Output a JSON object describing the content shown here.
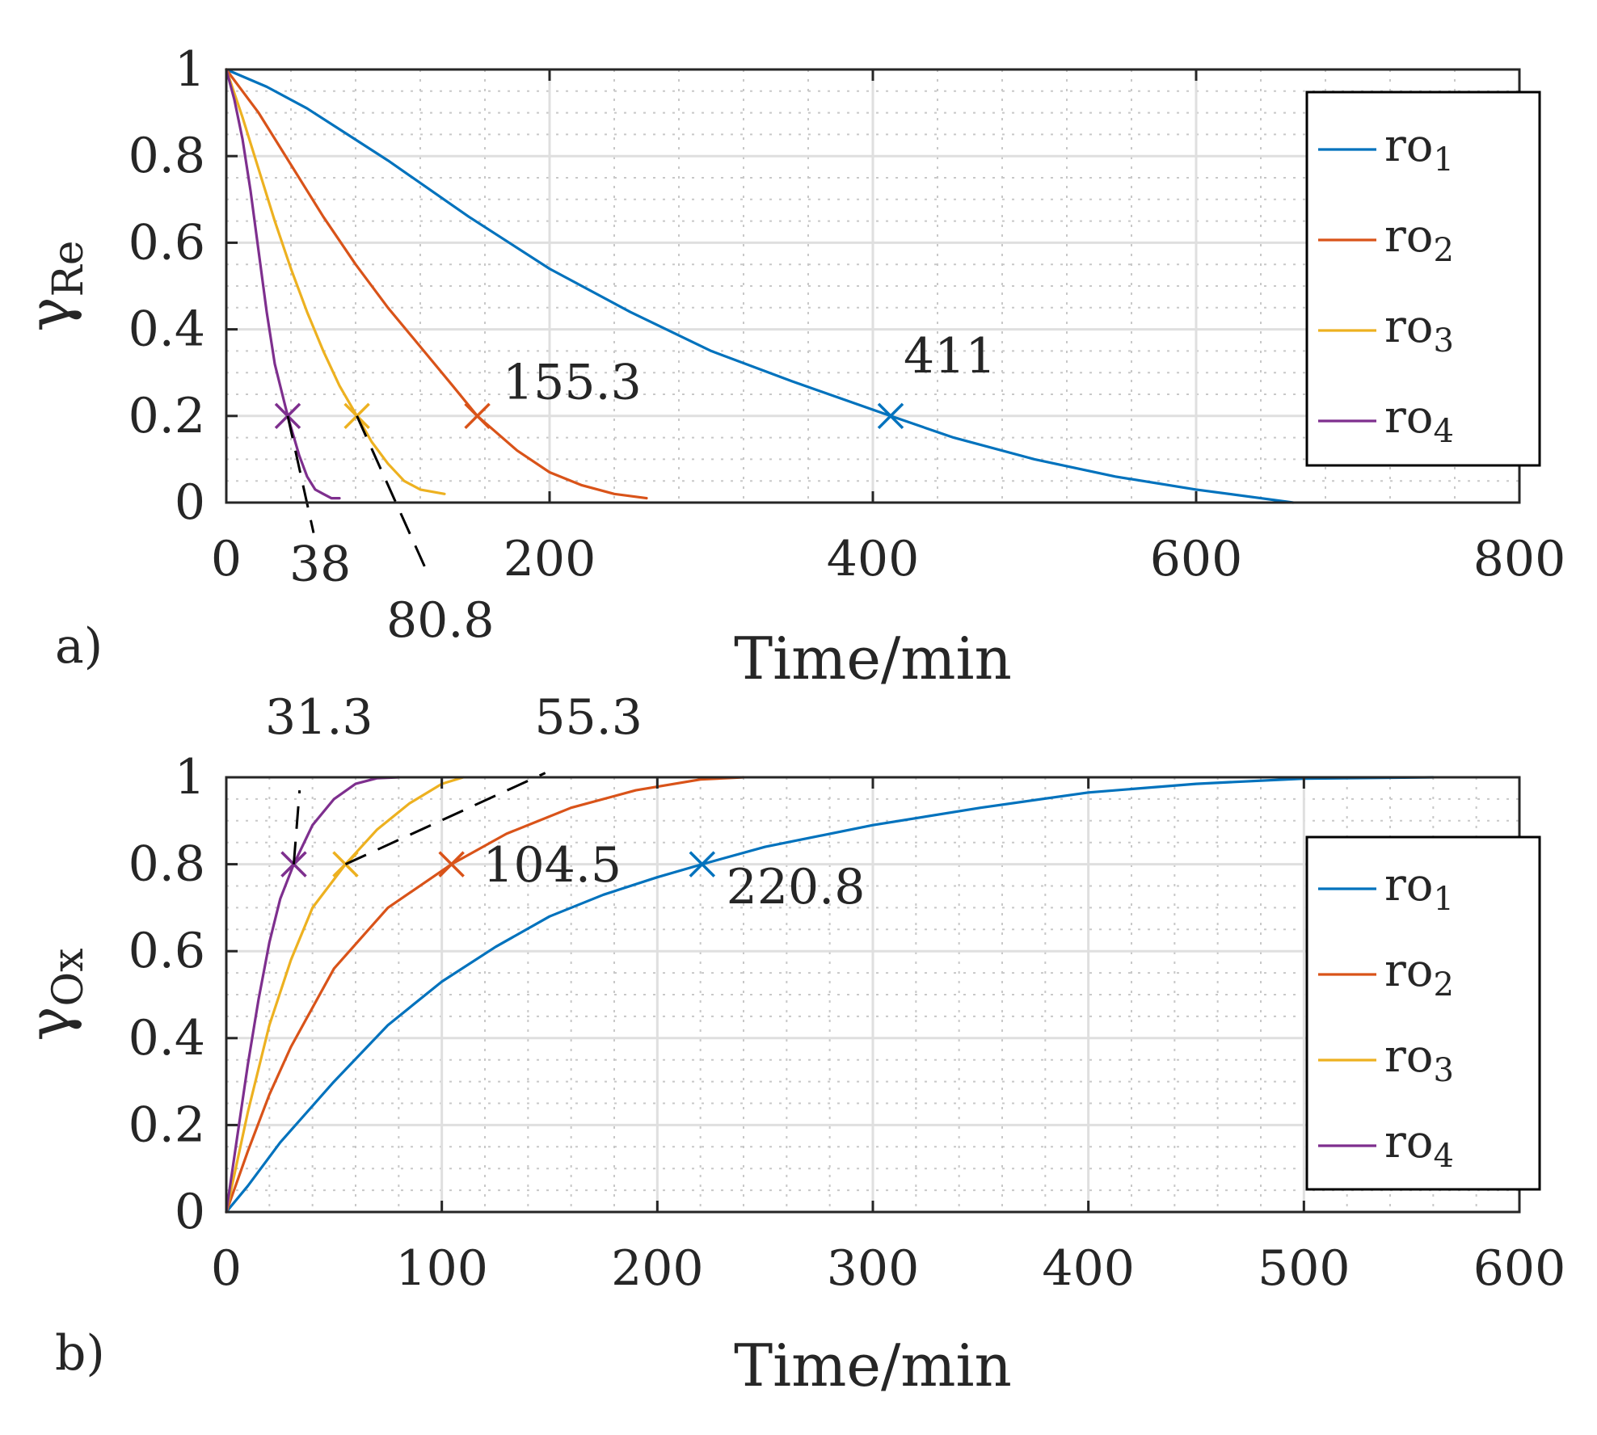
{
  "colors": {
    "ro1": "#0072BD",
    "ro2": "#D95319",
    "ro3": "#EDB120",
    "ro4": "#7E2F8E",
    "axis": "#262626",
    "grid_major": "#DFDFDF",
    "grid_minor": "#C8C8C8"
  },
  "chart_data": [
    {
      "type": "line",
      "panel_label": "a)",
      "xlabel": "Time/min",
      "ylabel_main": "γ",
      "ylabel_sub": "Re",
      "xlim": [
        0,
        800
      ],
      "ylim": [
        0,
        1
      ],
      "xticks": [
        0,
        200,
        400,
        600,
        800
      ],
      "xtick_labels": [
        "0",
        "200",
        "400",
        "600",
        "800"
      ],
      "yticks": [
        0,
        0.2,
        0.4,
        0.6,
        0.8,
        1
      ],
      "ytick_labels": [
        "0",
        "0.2",
        "0.4",
        "0.6",
        "0.8",
        "1"
      ],
      "xminor": [
        40,
        80,
        120,
        160,
        240,
        280,
        320,
        360,
        440,
        480,
        520,
        560,
        640,
        680,
        720,
        760
      ],
      "yminor": [
        0.05,
        0.1,
        0.15,
        0.25,
        0.3,
        0.35,
        0.45,
        0.5,
        0.55,
        0.65,
        0.7,
        0.75,
        0.85,
        0.9,
        0.95
      ],
      "grid": true,
      "legend_position": "right",
      "legend": [
        {
          "main": "ro",
          "sub": "1",
          "color_key": "ro1"
        },
        {
          "main": "ro",
          "sub": "2",
          "color_key": "ro2"
        },
        {
          "main": "ro",
          "sub": "3",
          "color_key": "ro3"
        },
        {
          "main": "ro",
          "sub": "4",
          "color_key": "ro4"
        }
      ],
      "series": [
        {
          "name": "ro1",
          "color_key": "ro1",
          "x": [
            0,
            25,
            50,
            75,
            100,
            150,
            200,
            250,
            300,
            350,
            411,
            450,
            500,
            550,
            600,
            640,
            660
          ],
          "y": [
            1,
            0.96,
            0.91,
            0.85,
            0.79,
            0.66,
            0.54,
            0.44,
            0.35,
            0.28,
            0.2,
            0.15,
            0.1,
            0.06,
            0.03,
            0.01,
            0
          ]
        },
        {
          "name": "ro2",
          "color_key": "ro2",
          "x": [
            0,
            10,
            20,
            40,
            60,
            80,
            100,
            120,
            140,
            155.3,
            180,
            200,
            220,
            240,
            260
          ],
          "y": [
            1,
            0.95,
            0.9,
            0.78,
            0.66,
            0.55,
            0.45,
            0.36,
            0.27,
            0.2,
            0.12,
            0.07,
            0.04,
            0.02,
            0.01
          ]
        },
        {
          "name": "ro3",
          "color_key": "ro3",
          "x": [
            0,
            10,
            20,
            30,
            40,
            50,
            60,
            70,
            80.8,
            90,
            100,
            110,
            120,
            135
          ],
          "y": [
            1,
            0.89,
            0.77,
            0.65,
            0.54,
            0.44,
            0.35,
            0.27,
            0.2,
            0.14,
            0.09,
            0.05,
            0.03,
            0.02
          ]
        },
        {
          "name": "ro4",
          "color_key": "ro4",
          "x": [
            0,
            5,
            10,
            15,
            20,
            25,
            30,
            38,
            45,
            50,
            55,
            60,
            65,
            70
          ],
          "y": [
            1,
            0.93,
            0.84,
            0.72,
            0.58,
            0.44,
            0.32,
            0.2,
            0.11,
            0.06,
            0.03,
            0.02,
            0.01,
            0.01
          ]
        }
      ],
      "markers": [
        {
          "series": "ro1",
          "x": 411,
          "y": 0.2
        },
        {
          "series": "ro2",
          "x": 155.3,
          "y": 0.2
        },
        {
          "series": "ro3",
          "x": 80.8,
          "y": 0.2
        },
        {
          "series": "ro4",
          "x": 38,
          "y": 0.2
        }
      ],
      "annotations": [
        {
          "text": "411",
          "x": 419,
          "y": 0.3,
          "leader": null
        },
        {
          "text": "155.3",
          "x": 171,
          "y": 0.24,
          "leader": null
        },
        {
          "text": "38",
          "x": 39,
          "y": -0.18,
          "leader": [
            [
              38,
              0.2
            ],
            [
              54,
              -0.07
            ]
          ]
        },
        {
          "text": "80.8",
          "x": 99,
          "y": -0.31,
          "leader": [
            [
              80.8,
              0.2
            ],
            [
              123,
              -0.15
            ]
          ]
        }
      ]
    },
    {
      "type": "line",
      "panel_label": "b)",
      "xlabel": "Time/min",
      "ylabel_main": "γ",
      "ylabel_sub": "Ox",
      "xlim": [
        0,
        600
      ],
      "ylim": [
        0,
        1
      ],
      "xticks": [
        0,
        100,
        200,
        300,
        400,
        500,
        600
      ],
      "xtick_labels": [
        "0",
        "100",
        "200",
        "300",
        "400",
        "500",
        "600"
      ],
      "yticks": [
        0,
        0.2,
        0.4,
        0.6,
        0.8,
        1
      ],
      "ytick_labels": [
        "0",
        "0.2",
        "0.4",
        "0.6",
        "0.8",
        "1"
      ],
      "xminor": [
        20,
        40,
        60,
        80,
        120,
        140,
        160,
        180,
        220,
        240,
        260,
        280,
        320,
        340,
        360,
        380,
        420,
        440,
        460,
        480,
        520,
        540,
        560,
        580
      ],
      "yminor": [
        0.05,
        0.1,
        0.15,
        0.25,
        0.3,
        0.35,
        0.45,
        0.5,
        0.55,
        0.65,
        0.7,
        0.75,
        0.85,
        0.9,
        0.95
      ],
      "grid": true,
      "legend_position": "right",
      "legend": [
        {
          "main": "ro",
          "sub": "1",
          "color_key": "ro1"
        },
        {
          "main": "ro",
          "sub": "2",
          "color_key": "ro2"
        },
        {
          "main": "ro",
          "sub": "3",
          "color_key": "ro3"
        },
        {
          "main": "ro",
          "sub": "4",
          "color_key": "ro4"
        }
      ],
      "series": [
        {
          "name": "ro1",
          "color_key": "ro1",
          "x": [
            0,
            10,
            25,
            50,
            75,
            100,
            125,
            150,
            175,
            200,
            220.8,
            250,
            300,
            350,
            400,
            450,
            500,
            560
          ],
          "y": [
            0,
            0.06,
            0.16,
            0.3,
            0.43,
            0.53,
            0.61,
            0.68,
            0.73,
            0.77,
            0.8,
            0.84,
            0.89,
            0.93,
            0.965,
            0.985,
            0.997,
            1
          ]
        },
        {
          "name": "ro2",
          "color_key": "ro2",
          "x": [
            0,
            10,
            20,
            30,
            50,
            75,
            104.5,
            130,
            160,
            190,
            220,
            240
          ],
          "y": [
            0,
            0.14,
            0.27,
            0.38,
            0.56,
            0.7,
            0.8,
            0.87,
            0.93,
            0.97,
            0.995,
            1
          ]
        },
        {
          "name": "ro3",
          "color_key": "ro3",
          "x": [
            0,
            10,
            20,
            30,
            40,
            55.3,
            70,
            85,
            100,
            110
          ],
          "y": [
            0,
            0.23,
            0.43,
            0.58,
            0.7,
            0.8,
            0.88,
            0.94,
            0.985,
            1
          ]
        },
        {
          "name": "ro4",
          "color_key": "ro4",
          "x": [
            0,
            5,
            10,
            15,
            20,
            25,
            31.3,
            40,
            50,
            60,
            70,
            80
          ],
          "y": [
            0,
            0.17,
            0.34,
            0.49,
            0.62,
            0.72,
            0.8,
            0.89,
            0.95,
            0.985,
            0.998,
            1
          ]
        }
      ],
      "markers": [
        {
          "series": "ro1",
          "x": 220.8,
          "y": 0.8
        },
        {
          "series": "ro2",
          "x": 104.5,
          "y": 0.8
        },
        {
          "series": "ro3",
          "x": 55.3,
          "y": 0.8
        },
        {
          "series": "ro4",
          "x": 31.3,
          "y": 0.8
        }
      ],
      "annotations": [
        {
          "text": "31.3",
          "x": 18,
          "y": 1.1,
          "leader": [
            [
              31.3,
              0.8
            ],
            [
              34,
              0.97
            ]
          ]
        },
        {
          "text": "55.3",
          "x": 143,
          "y": 1.1,
          "leader": [
            [
              55.3,
              0.8
            ],
            [
              148,
              1.01
            ]
          ]
        },
        {
          "text": "104.5",
          "x": 119,
          "y": 0.76,
          "leader": null
        },
        {
          "text": "220.8",
          "x": 232,
          "y": 0.71,
          "leader": null
        }
      ]
    }
  ]
}
